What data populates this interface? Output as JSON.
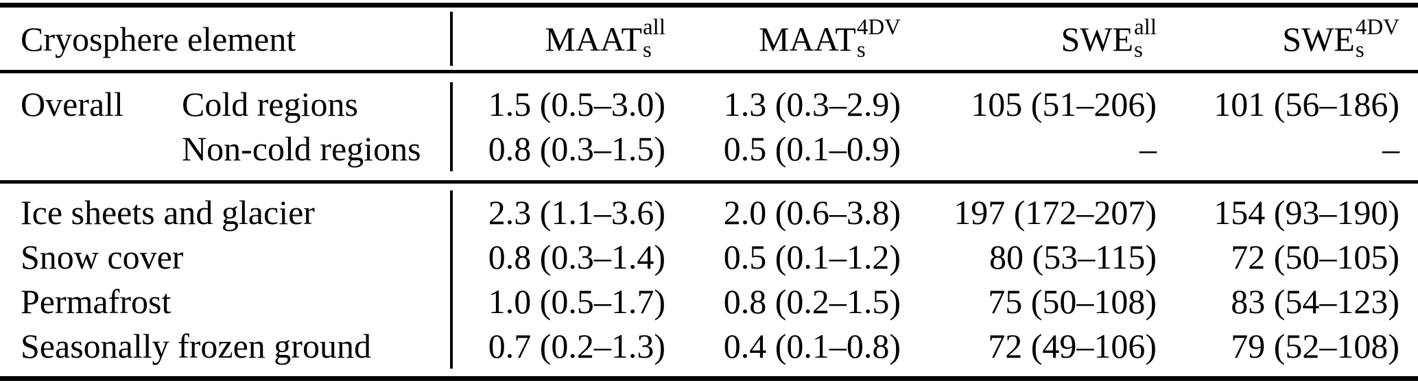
{
  "header": {
    "element_label": "Cryosphere element",
    "columns": [
      {
        "base": "MAAT",
        "sub": "s",
        "sup": "all"
      },
      {
        "base": "MAAT",
        "sub": "s",
        "sup": "4DV"
      },
      {
        "base": "SWE",
        "sub": "s",
        "sup": "all"
      },
      {
        "base": "SWE",
        "sub": "s",
        "sup": "4DV"
      }
    ]
  },
  "sections": [
    {
      "rows": [
        {
          "group": "Overall",
          "label": "Cold regions",
          "values": [
            "1.5 (0.5–3.0)",
            "1.3 (0.3–2.9)",
            "105 (51–206)",
            "101 (56–186)"
          ]
        },
        {
          "group": "",
          "label": "Non-cold regions",
          "values": [
            "0.8 (0.3–1.5)",
            "0.5 (0.1–0.9)",
            "–",
            "–"
          ]
        }
      ]
    },
    {
      "rows": [
        {
          "label": "Ice sheets and glacier",
          "values": [
            "2.3 (1.1–3.6)",
            "2.0 (0.6–3.8)",
            "197 (172–207)",
            "154 (93–190)"
          ]
        },
        {
          "label": "Snow cover",
          "values": [
            "0.8 (0.3–1.4)",
            "0.5 (0.1–1.2)",
            "80 (53–115)",
            "72 (50–105)"
          ]
        },
        {
          "label": "Permafrost",
          "values": [
            "1.0 (0.5–1.7)",
            "0.8 (0.2–1.5)",
            "75 (50–108)",
            "83 (54–123)"
          ]
        },
        {
          "label": "Seasonally frozen ground",
          "values": [
            "0.7 (0.2–1.3)",
            "0.4 (0.1–0.8)",
            "72 (49–106)",
            "79 (52–108)"
          ]
        }
      ]
    }
  ],
  "chart_data": {
    "type": "table",
    "title": "",
    "columns": [
      "Cryosphere element",
      "MAAT_s^all",
      "MAAT_s^4DV",
      "SWE_s^all",
      "SWE_s^4DV"
    ],
    "rows": [
      [
        "Overall – Cold regions",
        "1.5 (0.5–3.0)",
        "1.3 (0.3–2.9)",
        "105 (51–206)",
        "101 (56–186)"
      ],
      [
        "Overall – Non-cold regions",
        "0.8 (0.3–1.5)",
        "0.5 (0.1–0.9)",
        "–",
        "–"
      ],
      [
        "Ice sheets and glacier",
        "2.3 (1.1–3.6)",
        "2.0 (0.6–3.8)",
        "197 (172–207)",
        "154 (93–190)"
      ],
      [
        "Snow cover",
        "0.8 (0.3–1.4)",
        "0.5 (0.1–1.2)",
        "80 (53–115)",
        "72 (50–105)"
      ],
      [
        "Permafrost",
        "1.0 (0.5–1.7)",
        "0.8 (0.2–1.5)",
        "75 (50–108)",
        "83 (54–123)"
      ],
      [
        "Seasonally frozen ground",
        "0.7 (0.2–1.3)",
        "0.4 (0.1–0.8)",
        "72 (49–106)",
        "79 (52–108)"
      ]
    ],
    "colors": {
      "text": "#000000",
      "background": "#ffffff",
      "rule": "#000000"
    }
  }
}
